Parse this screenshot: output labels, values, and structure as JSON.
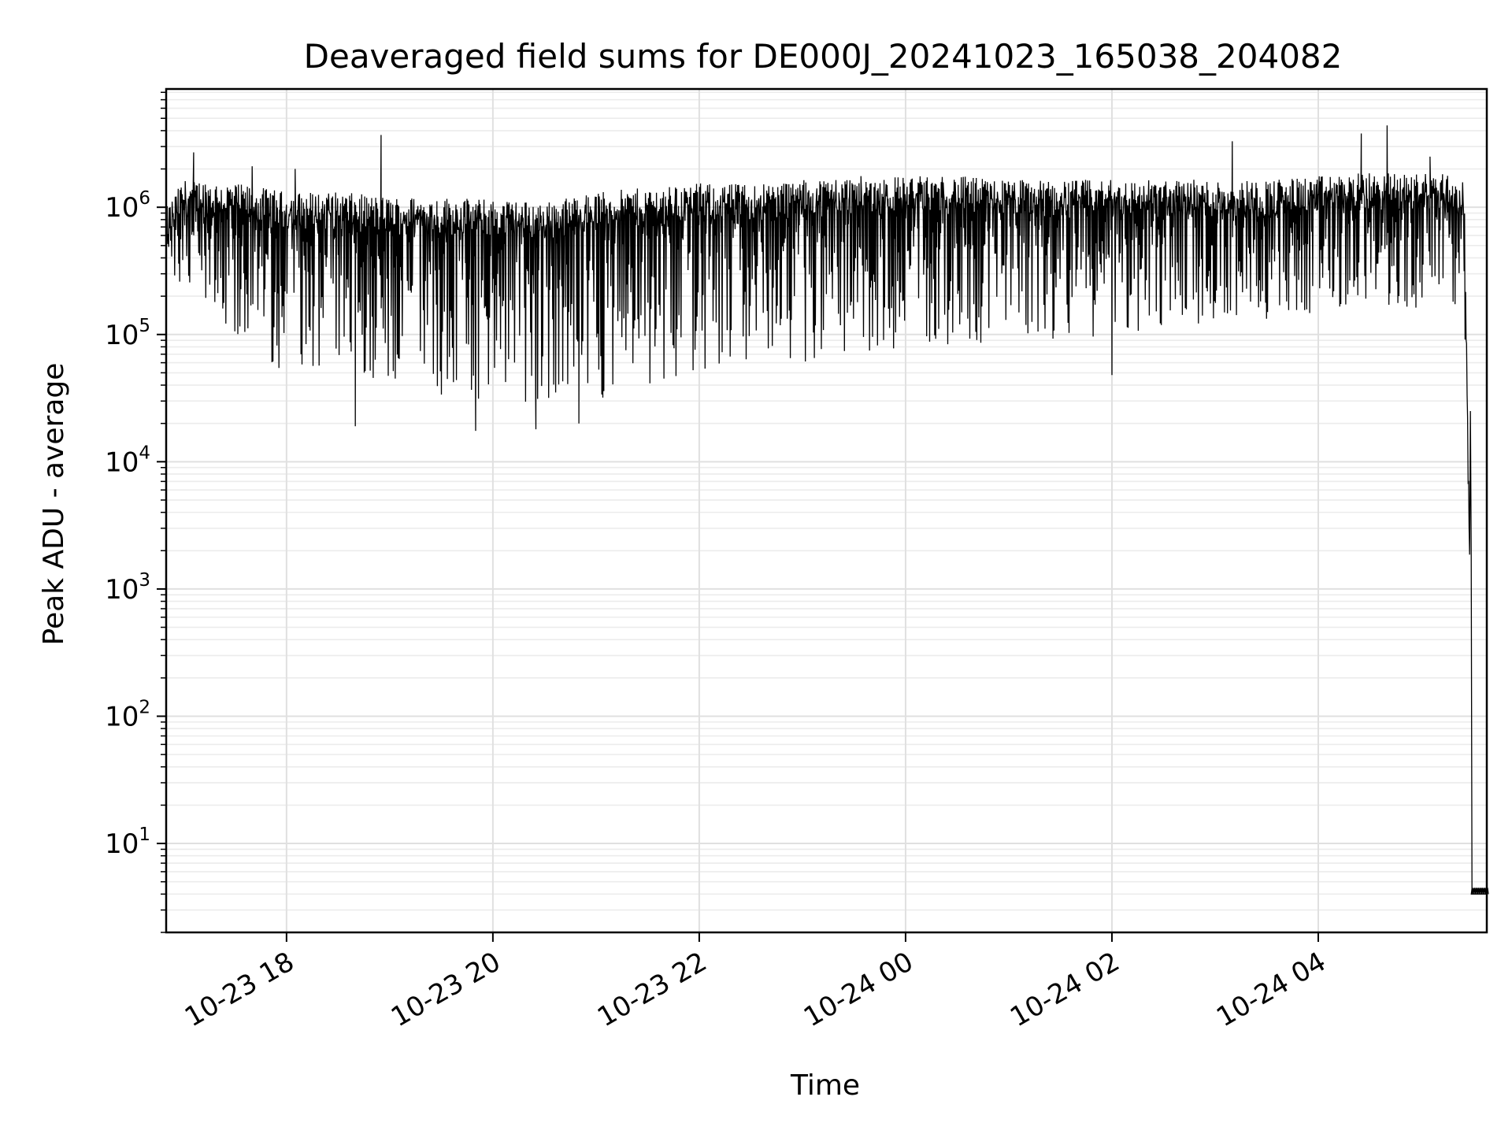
{
  "chart_data": {
    "type": "line",
    "title": "Deaveraged field sums for DE000J_20241023_165038_204082",
    "xlabel": "Time",
    "ylabel": "Peak ADU - average",
    "yscale": "log",
    "ylim": [
      2,
      8500000
    ],
    "xlim": [
      "2024-10-23T16:50",
      "2024-10-24T05:38"
    ],
    "grid": true,
    "x_ticks": [
      "10-23 18",
      "10-23 20",
      "10-23 22",
      "10-24 00",
      "10-24 02",
      "10-24 04"
    ],
    "y_ticks": [
      "10^1",
      "10^2",
      "10^3",
      "10^4",
      "10^5",
      "10^6"
    ],
    "series": [
      {
        "color": "#000000",
        "x": [
          "2024-10-23T16:50",
          "2024-10-23T17:00",
          "2024-10-23T17:15",
          "2024-10-23T17:30",
          "2024-10-23T17:45",
          "2024-10-23T18:00",
          "2024-10-23T18:30",
          "2024-10-23T19:00",
          "2024-10-23T19:30",
          "2024-10-23T20:00",
          "2024-10-23T20:30",
          "2024-10-23T21:00",
          "2024-10-23T21:30",
          "2024-10-23T22:00",
          "2024-10-23T22:30",
          "2024-10-23T23:00",
          "2024-10-23T23:30",
          "2024-10-24T00:00",
          "2024-10-24T00:30",
          "2024-10-24T01:00",
          "2024-10-24T01:30",
          "2024-10-24T02:00",
          "2024-10-24T02:30",
          "2024-10-24T03:00",
          "2024-10-24T03:30",
          "2024-10-24T04:00",
          "2024-10-24T04:30",
          "2024-10-24T05:00",
          "2024-10-24T05:15",
          "2024-10-24T05:25",
          "2024-10-24T05:28",
          "2024-10-24T05:38"
        ],
        "y_high": [
          900000,
          1500000,
          1500000,
          1400000,
          1300000,
          1200000,
          1200000,
          1100000,
          1100000,
          1050000,
          1000000,
          1200000,
          1300000,
          1400000,
          1400000,
          1500000,
          1600000,
          1600000,
          1600000,
          1500000,
          1500000,
          1500000,
          1500000,
          1500000,
          1500000,
          1600000,
          1700000,
          1700000,
          1700000,
          1400000,
          2000,
          4
        ],
        "y_low": [
          400000,
          150000,
          200000,
          80000,
          60000,
          50000,
          45000,
          40000,
          30000,
          25000,
          25000,
          30000,
          40000,
          45000,
          50000,
          60000,
          70000,
          80000,
          80000,
          90000,
          90000,
          100000,
          110000,
          120000,
          130000,
          150000,
          150000,
          150000,
          150000,
          100000,
          2000,
          4
        ],
        "peaks": [
          {
            "x": "2024-10-23T17:06",
            "y": 2700000
          },
          {
            "x": "2024-10-23T17:40",
            "y": 2100000
          },
          {
            "x": "2024-10-23T18:05",
            "y": 2000000
          },
          {
            "x": "2024-10-23T18:55",
            "y": 3700000
          },
          {
            "x": "2024-10-24T03:10",
            "y": 3300000
          },
          {
            "x": "2024-10-24T04:25",
            "y": 3800000
          },
          {
            "x": "2024-10-24T04:40",
            "y": 4400000
          },
          {
            "x": "2024-10-24T05:05",
            "y": 2500000
          }
        ],
        "troughs": [
          {
            "x": "2024-10-23T18:40",
            "y": 19000
          },
          {
            "x": "2024-10-23T19:50",
            "y": 17500
          },
          {
            "x": "2024-10-23T20:25",
            "y": 18000
          },
          {
            "x": "2024-10-23T20:50",
            "y": 20000
          },
          {
            "x": "2024-10-24T02:00",
            "y": 48000
          }
        ]
      }
    ]
  }
}
